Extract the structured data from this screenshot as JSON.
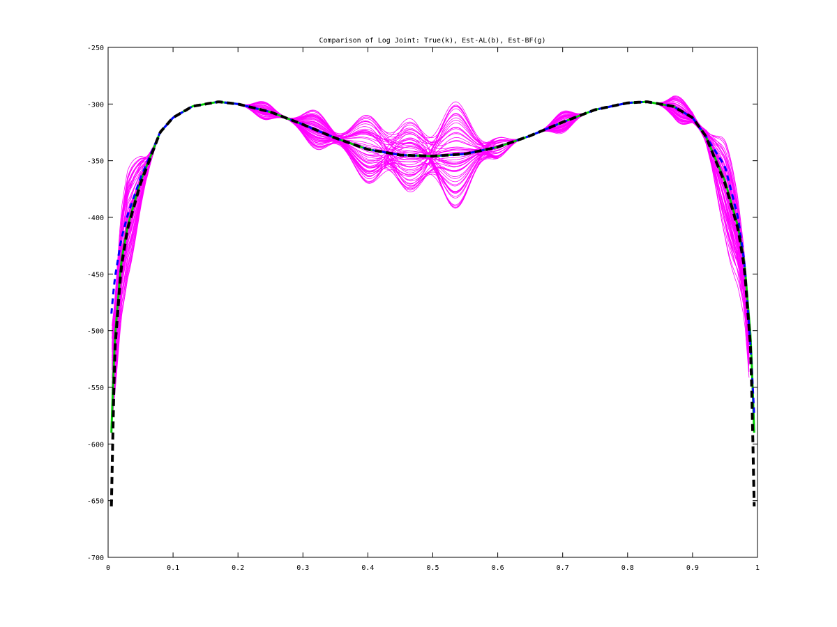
{
  "chart_data": {
    "type": "line",
    "title": "Comparison of Log Joint: True(k), Est-AL(b), Est-BF(g)",
    "xlabel": "",
    "ylabel": "",
    "xlim": [
      0,
      1
    ],
    "ylim": [
      -700,
      -250
    ],
    "xticks": [
      0,
      0.1,
      0.2,
      0.3,
      0.4,
      0.5,
      0.6,
      0.7,
      0.8,
      0.9,
      1
    ],
    "xtick_labels": [
      "0",
      "0.1",
      "0.2",
      "0.3",
      "0.4",
      "0.5",
      "0.6",
      "0.7",
      "0.8",
      "0.9",
      "1"
    ],
    "yticks": [
      -700,
      -650,
      -600,
      -550,
      -500,
      -450,
      -400,
      -350,
      -300,
      -250
    ],
    "ytick_labels": [
      "-700",
      "-650",
      "-600",
      "-550",
      "-500",
      "-450",
      "-400",
      "-350",
      "-300",
      "-250"
    ],
    "grid": false,
    "legend": "none",
    "series": [
      {
        "key": "true_k",
        "color": "#000000",
        "style": "dashed",
        "x": [
          0.005,
          0.01,
          0.02,
          0.03,
          0.05,
          0.08,
          0.1,
          0.13,
          0.17,
          0.2,
          0.25,
          0.3,
          0.35,
          0.4,
          0.45,
          0.5,
          0.55,
          0.6,
          0.65,
          0.7,
          0.75,
          0.8,
          0.83,
          0.87,
          0.9,
          0.92,
          0.95,
          0.97,
          0.98,
          0.99,
          0.995
        ],
        "y": [
          -655,
          -520,
          -445,
          -410,
          -370,
          -325,
          -312,
          -302,
          -298,
          -300,
          -307,
          -318,
          -330,
          -340,
          -345,
          -346,
          -344,
          -338,
          -328,
          -316,
          -305,
          -299,
          -298,
          -302,
          -312,
          -328,
          -370,
          -410,
          -445,
          -520,
          -655
        ]
      },
      {
        "key": "est_al_b",
        "color": "#0000ff",
        "style": "dashed",
        "x": [
          0.005,
          0.01,
          0.02,
          0.03,
          0.05,
          0.08,
          0.1,
          0.13,
          0.17,
          0.2,
          0.25,
          0.3,
          0.35,
          0.4,
          0.45,
          0.5,
          0.55,
          0.6,
          0.65,
          0.7,
          0.75,
          0.8,
          0.83,
          0.87,
          0.9,
          0.92,
          0.95,
          0.97,
          0.98,
          0.99,
          0.995
        ],
        "y": [
          -485,
          -455,
          -420,
          -398,
          -365,
          -325,
          -312,
          -302,
          -298,
          -300,
          -307,
          -318,
          -330,
          -340,
          -345,
          -346,
          -344,
          -338,
          -328,
          -316,
          -305,
          -299,
          -298,
          -302,
          -312,
          -328,
          -355,
          -400,
          -440,
          -520,
          -575
        ]
      },
      {
        "key": "est_bf_g",
        "color": "#00cc00",
        "style": "solid",
        "x": [
          0.005,
          0.01,
          0.02,
          0.03,
          0.05,
          0.08,
          0.1,
          0.13,
          0.17,
          0.2,
          0.25,
          0.3,
          0.35,
          0.4,
          0.45,
          0.5,
          0.55,
          0.6,
          0.65,
          0.7,
          0.75,
          0.8,
          0.83,
          0.87,
          0.9,
          0.92,
          0.95,
          0.97,
          0.98,
          0.99,
          0.995
        ],
        "y": [
          -590,
          -510,
          -440,
          -408,
          -368,
          -325,
          -312,
          -302,
          -298,
          -300,
          -307,
          -318,
          -330,
          -340,
          -345,
          -346,
          -344,
          -338,
          -328,
          -316,
          -305,
          -299,
          -298,
          -302,
          -312,
          -328,
          -368,
          -408,
          -440,
          -510,
          -590
        ]
      }
    ],
    "samples": {
      "color": "#ff00ff",
      "count": 60,
      "note_visible": false
    }
  }
}
